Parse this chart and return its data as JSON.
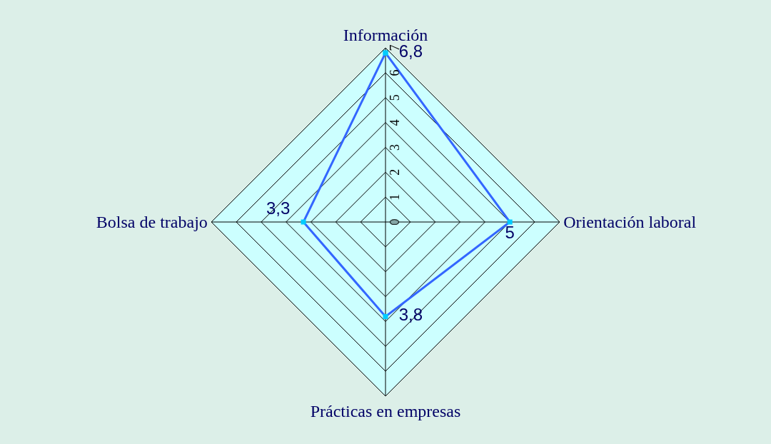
{
  "chart_data": {
    "type": "radar",
    "categories": [
      "Información",
      "Orientación laboral",
      "Prácticas en empresas",
      "Bolsa de trabajo"
    ],
    "series": [
      {
        "color": "#3366ff",
        "values": [
          6.8,
          5,
          3.8,
          3.3
        ],
        "value_labels": [
          "6,8",
          "5",
          "3,8",
          "3,3"
        ]
      }
    ],
    "ylim": [
      0,
      7
    ],
    "yticks": [
      0,
      1,
      2,
      3,
      4,
      5,
      6,
      7
    ],
    "grid": true,
    "marker": "square",
    "legend": false
  }
}
